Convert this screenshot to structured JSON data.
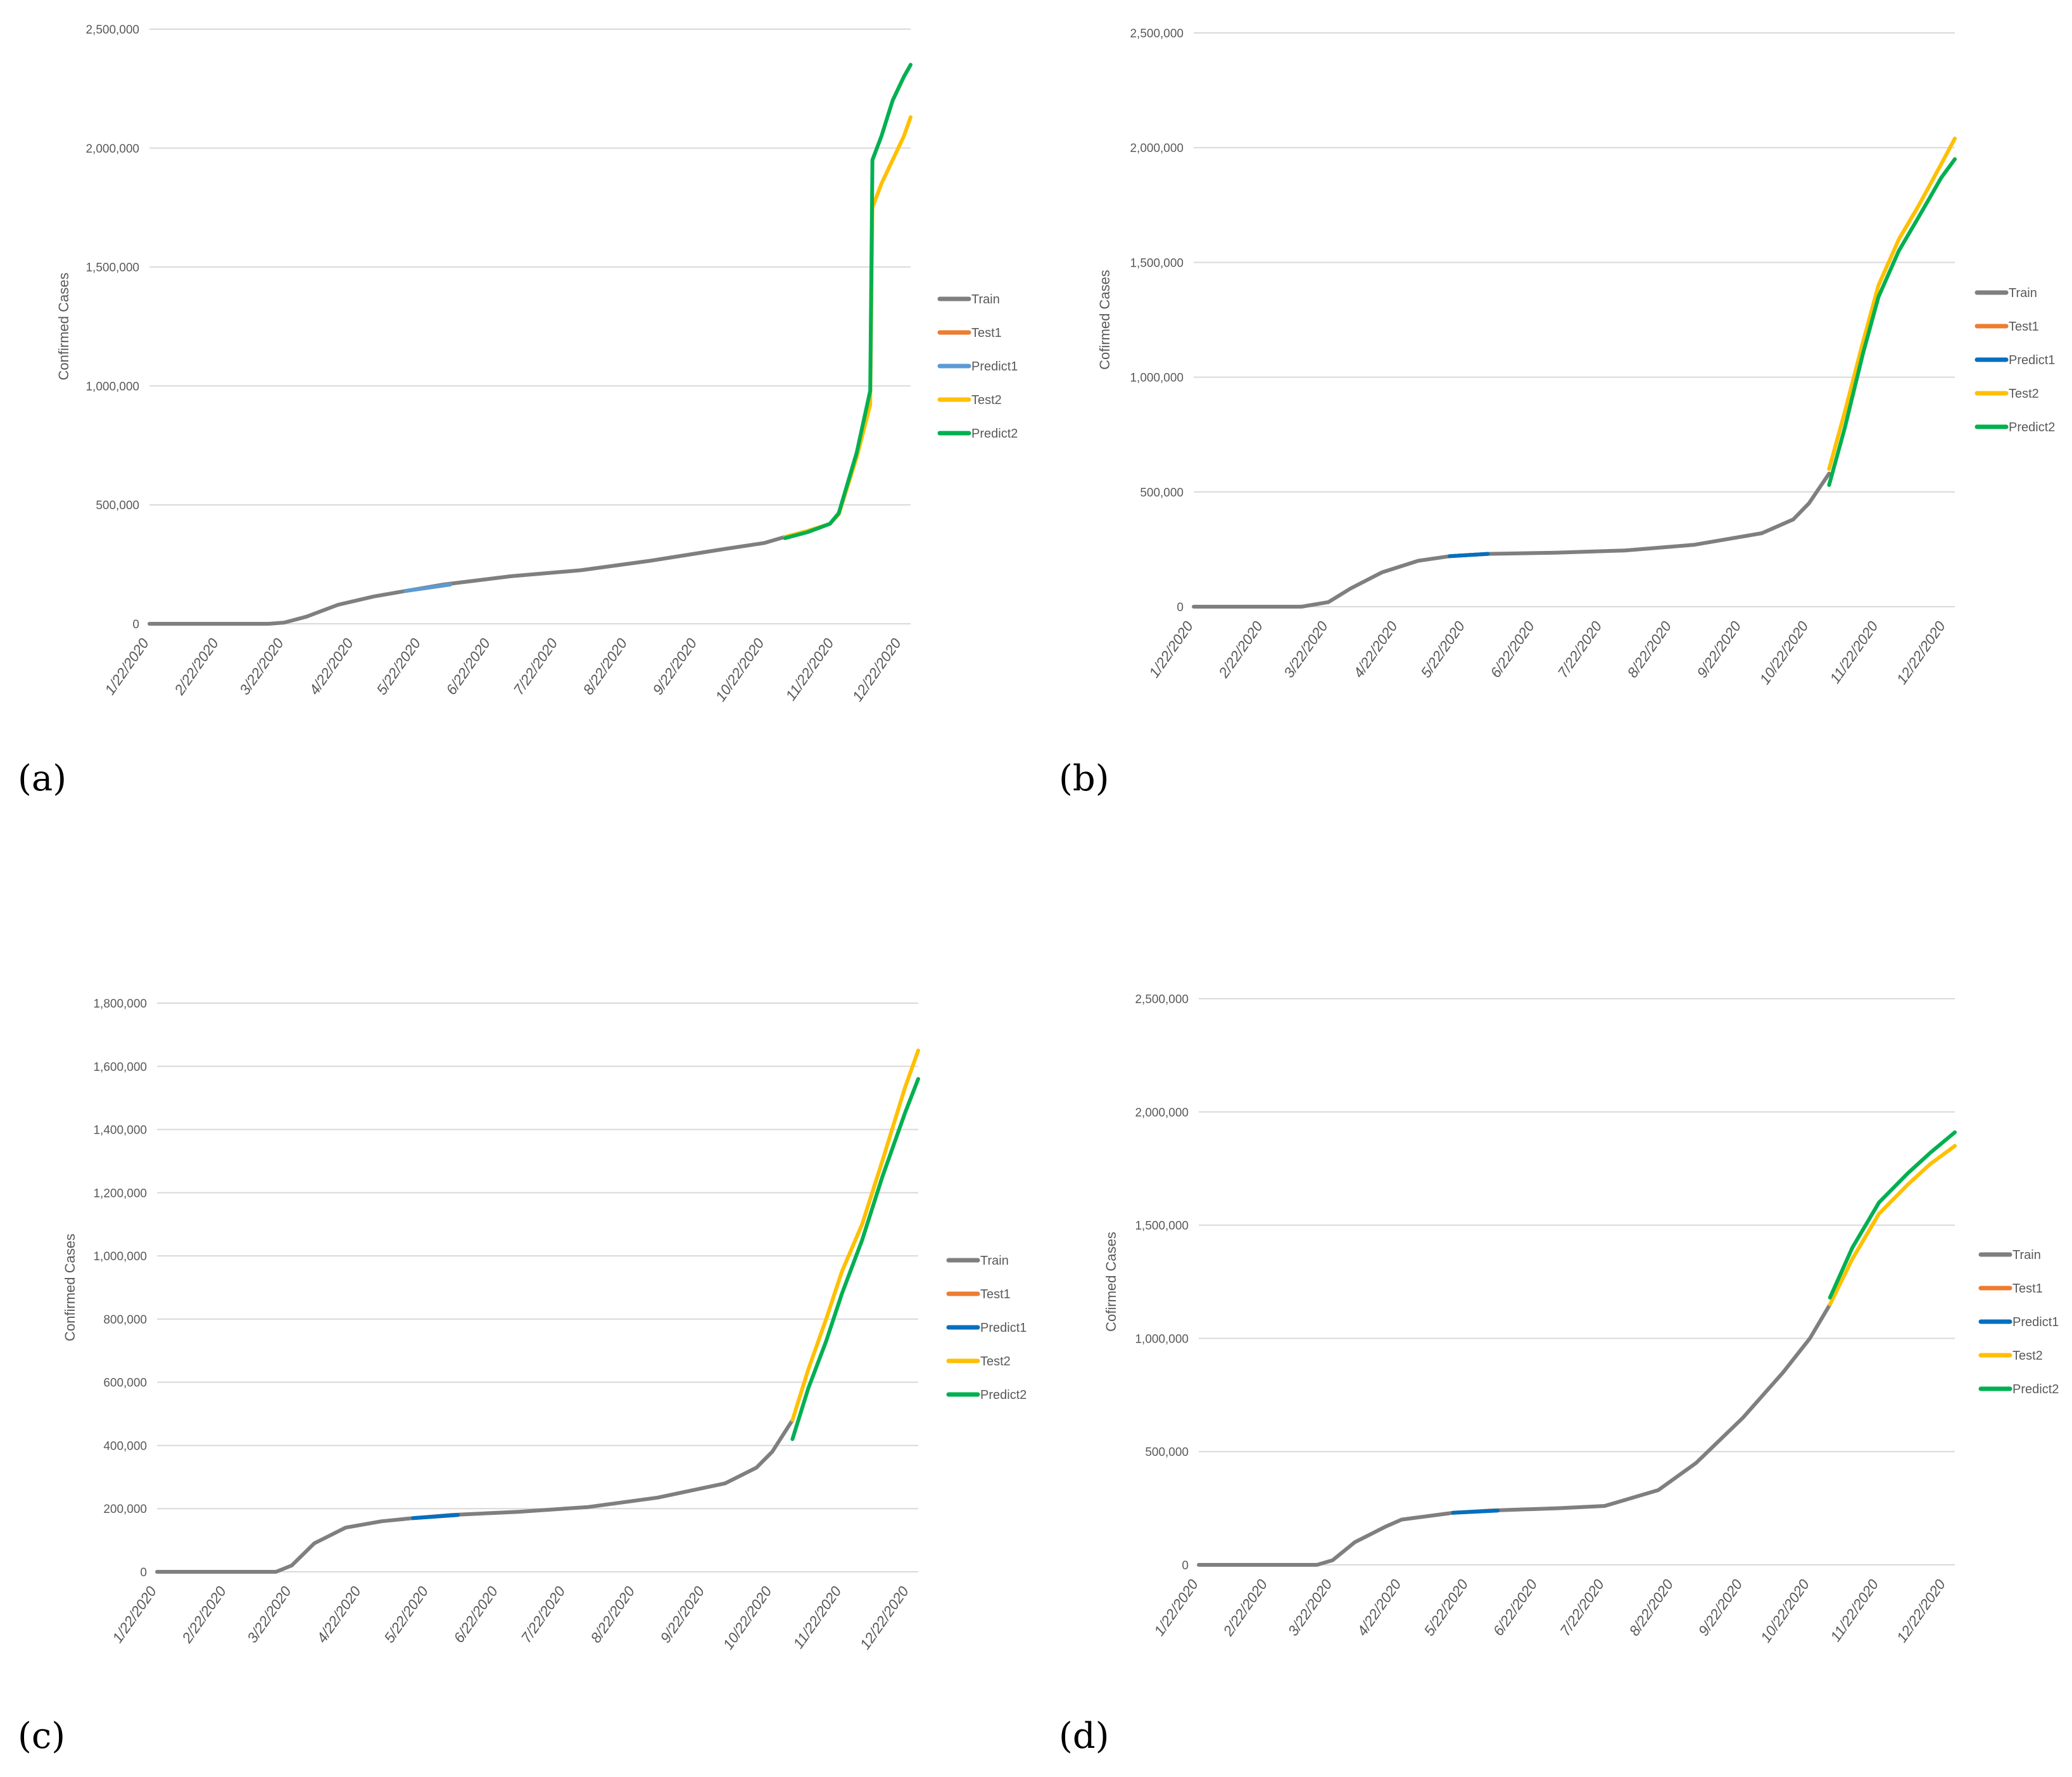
{
  "colors": {
    "train": "#7f7f7f",
    "test1": "#ed7d31",
    "predict1_a": "#5b9bd5",
    "predict1": "#0070c0",
    "test2": "#ffc000",
    "predict2": "#00b050",
    "grid": "#d9d9d9",
    "text": "#595959"
  },
  "chart_data": [
    {
      "panel": "(a)",
      "type": "line",
      "ylabel": "Confirmed Cases",
      "ylim": [
        0,
        2500000
      ],
      "yticks": [
        "0",
        "500,000",
        "1,000,000",
        "1,500,000",
        "2,000,000",
        "2,500,000"
      ],
      "xticks": [
        "1/22/2020",
        "2/22/2020",
        "3/22/2020",
        "4/22/2020",
        "5/22/2020",
        "6/22/2020",
        "7/22/2020",
        "8/22/2020",
        "9/22/2020",
        "10/22/2020",
        "11/22/2020",
        "12/22/2020"
      ],
      "legend": [
        "Train",
        "Test1",
        "Predict1",
        "Test2",
        "Predict2"
      ],
      "legend_position": "right",
      "grid": true,
      "series": [
        {
          "name": "Train",
          "x": [
            "1/22/2020",
            "3/15/2020",
            "3/22/2020",
            "4/1/2020",
            "4/15/2020",
            "5/1/2020",
            "5/15/2020",
            "6/1/2020",
            "7/1/2020",
            "8/1/2020",
            "9/1/2020",
            "10/1/2020",
            "10/22/2020",
            "10/31/2020"
          ],
          "y": [
            0,
            0,
            5000,
            30000,
            80000,
            115000,
            138000,
            165000,
            200000,
            225000,
            265000,
            310000,
            340000,
            365000
          ]
        },
        {
          "name": "Test1",
          "x": [
            "5/15/2020",
            "6/4/2020"
          ],
          "y": [
            138000,
            165000
          ]
        },
        {
          "name": "Predict1",
          "x": [
            "5/15/2020",
            "6/4/2020"
          ],
          "y": [
            138000,
            165000
          ]
        },
        {
          "name": "Test2",
          "x": [
            "10/31/2020",
            "11/10/2020",
            "11/20/2020",
            "11/24/2020",
            "12/2/2020",
            "12/8/2020",
            "12/9/2020",
            "12/13/2020",
            "12/18/2020",
            "12/23/2020",
            "12/26/2020"
          ],
          "y": [
            365000,
            390000,
            420000,
            460000,
            700000,
            920000,
            1750000,
            1850000,
            1950000,
            2050000,
            2130000
          ]
        },
        {
          "name": "Predict2",
          "x": [
            "10/31/2020",
            "11/10/2020",
            "11/20/2020",
            "11/24/2020",
            "12/2/2020",
            "12/8/2020",
            "12/9/2020",
            "12/13/2020",
            "12/18/2020",
            "12/23/2020",
            "12/26/2020"
          ],
          "y": [
            360000,
            385000,
            420000,
            465000,
            720000,
            980000,
            1950000,
            2050000,
            2200000,
            2300000,
            2350000
          ]
        }
      ]
    },
    {
      "panel": "(b)",
      "type": "line",
      "ylabel": "Cofirmed Cases",
      "ylim": [
        0,
        2500000
      ],
      "yticks": [
        "0",
        "500,000",
        "1,000,000",
        "1,500,000",
        "2,000,000",
        "2,500,000"
      ],
      "xticks": [
        "1/22/2020",
        "2/22/2020",
        "3/22/2020",
        "4/22/2020",
        "5/22/2020",
        "6/22/2020",
        "7/22/2020",
        "8/22/2020",
        "9/22/2020",
        "10/22/2020",
        "11/22/2020",
        "12/22/2020"
      ],
      "legend": [
        "Train",
        "Test1",
        "Predict1",
        "Test2",
        "Predict2"
      ],
      "legend_position": "right",
      "grid": true,
      "series": [
        {
          "name": "Train",
          "x": [
            "1/22/2020",
            "3/10/2020",
            "3/22/2020",
            "4/1/2020",
            "4/15/2020",
            "5/1/2020",
            "5/15/2020",
            "6/1/2020",
            "7/1/2020",
            "8/1/2020",
            "9/1/2020",
            "10/1/2020",
            "10/15/2020",
            "10/22/2020",
            "10/31/2020"
          ],
          "y": [
            0,
            0,
            20000,
            80000,
            150000,
            200000,
            220000,
            230000,
            235000,
            245000,
            270000,
            320000,
            380000,
            450000,
            580000
          ]
        },
        {
          "name": "Test1",
          "x": [
            "5/15/2020",
            "6/1/2020"
          ],
          "y": [
            220000,
            230000
          ]
        },
        {
          "name": "Predict1",
          "x": [
            "5/15/2020",
            "6/1/2020"
          ],
          "y": [
            220000,
            230000
          ]
        },
        {
          "name": "Test2",
          "x": [
            "10/31/2020",
            "11/7/2020",
            "11/15/2020",
            "11/22/2020",
            "12/1/2020",
            "12/10/2020",
            "12/20/2020",
            "12/26/2020"
          ],
          "y": [
            600000,
            850000,
            1150000,
            1400000,
            1600000,
            1750000,
            1930000,
            2040000
          ]
        },
        {
          "name": "Predict2",
          "x": [
            "10/31/2020",
            "11/7/2020",
            "11/15/2020",
            "11/22/2020",
            "12/1/2020",
            "12/10/2020",
            "12/20/2020",
            "12/26/2020"
          ],
          "y": [
            530000,
            780000,
            1100000,
            1350000,
            1550000,
            1700000,
            1870000,
            1950000
          ]
        }
      ]
    },
    {
      "panel": "(c)",
      "type": "line",
      "ylabel": "Confirmed Cases",
      "ylim": [
        0,
        1800000
      ],
      "yticks": [
        "0",
        "200,000",
        "400,000",
        "600,000",
        "800,000",
        "1,000,000",
        "1,200,000",
        "1,400,000",
        "1,600,000",
        "1,800,000"
      ],
      "xticks": [
        "1/22/2020",
        "2/22/2020",
        "3/22/2020",
        "4/22/2020",
        "5/22/2020",
        "6/22/2020",
        "7/22/2020",
        "8/22/2020",
        "9/22/2020",
        "10/22/2020",
        "11/22/2020",
        "12/22/2020"
      ],
      "legend": [
        "Train",
        "Test1",
        "Predict1",
        "Test2",
        "Predict2"
      ],
      "legend_position": "right",
      "grid": true,
      "series": [
        {
          "name": "Train",
          "x": [
            "1/22/2020",
            "3/15/2020",
            "3/22/2020",
            "4/1/2020",
            "4/15/2020",
            "5/1/2020",
            "5/15/2020",
            "6/1/2020",
            "7/1/2020",
            "8/1/2020",
            "9/1/2020",
            "10/1/2020",
            "10/15/2020",
            "10/22/2020",
            "10/31/2020"
          ],
          "y": [
            0,
            0,
            20000,
            90000,
            140000,
            160000,
            170000,
            180000,
            190000,
            205000,
            235000,
            280000,
            330000,
            380000,
            480000
          ]
        },
        {
          "name": "Test1",
          "x": [
            "5/15/2020",
            "6/4/2020"
          ],
          "y": [
            170000,
            180000
          ]
        },
        {
          "name": "Predict1",
          "x": [
            "5/15/2020",
            "6/4/2020"
          ],
          "y": [
            170000,
            180000
          ]
        },
        {
          "name": "Test2",
          "x": [
            "10/31/2020",
            "11/7/2020",
            "11/15/2020",
            "11/22/2020",
            "12/1/2020",
            "12/10/2020",
            "12/20/2020",
            "12/26/2020"
          ],
          "y": [
            480000,
            640000,
            800000,
            950000,
            1100000,
            1300000,
            1530000,
            1650000
          ]
        },
        {
          "name": "Predict2",
          "x": [
            "10/31/2020",
            "11/7/2020",
            "11/15/2020",
            "11/22/2020",
            "12/1/2020",
            "12/10/2020",
            "12/20/2020",
            "12/26/2020"
          ],
          "y": [
            420000,
            580000,
            730000,
            880000,
            1050000,
            1250000,
            1450000,
            1560000
          ]
        }
      ]
    },
    {
      "panel": "(d)",
      "type": "line",
      "ylabel": "Cofirmed Cases",
      "ylim": [
        0,
        2500000
      ],
      "yticks": [
        "0",
        "500,000",
        "1,000,000",
        "1,500,000",
        "2,000,000",
        "2,500,000"
      ],
      "xticks": [
        "1/22/2020",
        "2/22/2020",
        "3/22/2020",
        "4/22/2020",
        "5/22/2020",
        "6/22/2020",
        "7/22/2020",
        "8/22/2020",
        "9/22/2020",
        "10/22/2020",
        "11/22/2020",
        "12/22/2020"
      ],
      "legend": [
        "Train",
        "Test1",
        "Predict1",
        "Test2",
        "Predict2"
      ],
      "legend_position": "right",
      "grid": true,
      "series": [
        {
          "name": "Train",
          "x": [
            "1/22/2020",
            "3/15/2020",
            "3/22/2020",
            "4/1/2020",
            "4/15/2020",
            "4/22/2020",
            "5/15/2020",
            "6/1/2020",
            "7/1/2020",
            "7/22/2020",
            "8/15/2020",
            "9/1/2020",
            "9/22/2020",
            "10/10/2020",
            "10/22/2020",
            "10/31/2020"
          ],
          "y": [
            0,
            0,
            20000,
            100000,
            170000,
            200000,
            230000,
            240000,
            250000,
            260000,
            330000,
            450000,
            650000,
            850000,
            1000000,
            1150000
          ]
        },
        {
          "name": "Test1",
          "x": [
            "5/15/2020",
            "6/4/2020"
          ],
          "y": [
            230000,
            240000
          ]
        },
        {
          "name": "Predict1",
          "x": [
            "5/15/2020",
            "6/4/2020"
          ],
          "y": [
            230000,
            240000
          ]
        },
        {
          "name": "Test2",
          "x": [
            "10/31/2020",
            "11/10/2020",
            "11/22/2020",
            "12/5/2020",
            "12/15/2020",
            "12/26/2020"
          ],
          "y": [
            1150000,
            1350000,
            1550000,
            1680000,
            1770000,
            1850000
          ]
        },
        {
          "name": "Predict2",
          "x": [
            "10/31/2020",
            "11/10/2020",
            "11/22/2020",
            "12/5/2020",
            "12/15/2020",
            "12/26/2020"
          ],
          "y": [
            1180000,
            1400000,
            1600000,
            1730000,
            1820000,
            1910000
          ]
        }
      ]
    }
  ]
}
